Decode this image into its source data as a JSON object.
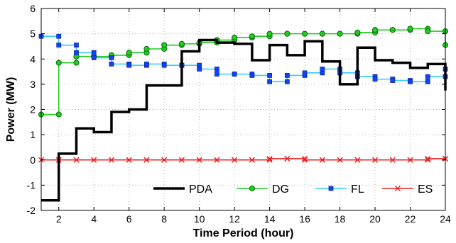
{
  "chart_data": {
    "type": "line",
    "style": "step",
    "xlabel": "Time Period (hour)",
    "ylabel": "Power (MW)",
    "xlim": [
      1,
      24
    ],
    "ylim": [
      -2,
      6
    ],
    "xticks": [
      2,
      4,
      6,
      8,
      10,
      12,
      14,
      16,
      18,
      20,
      22,
      24
    ],
    "yticks": [
      -2,
      -1,
      0,
      1,
      2,
      3,
      4,
      5,
      6
    ],
    "grid": true,
    "legend_position": "bottom-right",
    "series": [
      {
        "name": "PDA",
        "color": "#000000",
        "marker": "none",
        "x": [
          1,
          2,
          3,
          4,
          5,
          6,
          7,
          8,
          9,
          10,
          11,
          12,
          13,
          14,
          15,
          16,
          17,
          18,
          19,
          20,
          21,
          22,
          23
        ],
        "values": [
          -1.6,
          0.25,
          1.25,
          1.1,
          1.9,
          2.0,
          2.95,
          2.95,
          4.3,
          4.75,
          4.65,
          4.6,
          3.95,
          4.55,
          4.15,
          4.7,
          3.9,
          3.0,
          4.45,
          3.95,
          3.85,
          3.65,
          3.8
        ],
        "end_value": 2.75
      },
      {
        "name": "DG",
        "color": "#22cc22",
        "marker": "circle",
        "x": [
          1,
          2,
          3,
          4,
          5,
          6,
          7,
          8,
          9,
          10,
          11,
          12,
          13,
          14,
          15,
          16,
          17,
          18,
          19,
          20,
          21,
          22,
          23
        ],
        "values": [
          1.8,
          3.85,
          4.1,
          4.1,
          4.15,
          4.25,
          4.4,
          4.55,
          4.6,
          4.65,
          4.75,
          4.85,
          4.9,
          5.0,
          5.0,
          5.0,
          5.0,
          5.0,
          5.05,
          5.15,
          5.15,
          5.2,
          5.1
        ],
        "end_value": 4.55
      },
      {
        "name": "FL",
        "color": "#33ccff",
        "marker": "square",
        "x": [
          1,
          2,
          3,
          4,
          5,
          6,
          7,
          8,
          9,
          10,
          11,
          12,
          13,
          14,
          15,
          16,
          17,
          18,
          19,
          20,
          21,
          22,
          23
        ],
        "values": [
          4.9,
          4.55,
          4.25,
          4.05,
          3.8,
          3.75,
          3.8,
          3.75,
          3.75,
          3.6,
          3.4,
          3.4,
          3.35,
          3.1,
          3.35,
          3.45,
          3.6,
          3.45,
          3.3,
          3.2,
          3.15,
          3.1,
          3.3
        ],
        "end_value": 3.6
      },
      {
        "name": "ES",
        "color": "#ee2222",
        "marker": "x",
        "x": [
          1,
          2,
          3,
          4,
          5,
          6,
          7,
          8,
          9,
          10,
          11,
          12,
          13,
          14,
          15,
          16,
          17,
          18,
          19,
          20,
          21,
          22,
          23
        ],
        "values": [
          0,
          0,
          0,
          0,
          0,
          0,
          0,
          0,
          0,
          0,
          0,
          0,
          0,
          0.05,
          0.05,
          0,
          0,
          0,
          0,
          0,
          0,
          0,
          0.05
        ],
        "end_value": 0.05
      }
    ]
  }
}
